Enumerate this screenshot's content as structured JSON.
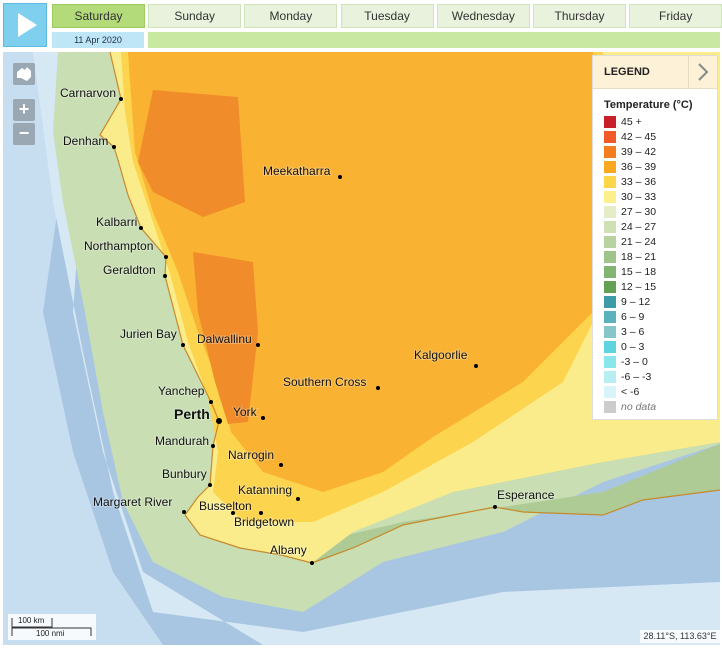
{
  "toolbar": {
    "days": [
      "Saturday",
      "Sunday",
      "Monday",
      "Tuesday",
      "Wednesday",
      "Thursday",
      "Friday"
    ],
    "date": "11 Apr 2020"
  },
  "map": {
    "zoom_in": "+",
    "zoom_out": "−",
    "places": [
      "Carnarvon",
      "Denham",
      "Meekatharra",
      "Kalbarri",
      "Northampton",
      "Geraldton",
      "Jurien Bay",
      "Dalwallinu",
      "Kalgoorlie",
      "Southern Cross",
      "Yanchep",
      "Perth",
      "York",
      "Mandurah",
      "Narrogin",
      "Bunbury",
      "Katanning",
      "Margaret River",
      "Busselton",
      "Bridgetown",
      "Esperance",
      "Albany"
    ],
    "scale_km": "100 km",
    "scale_nmi": "100 nmi",
    "coordinates": "28.11°S, 113.63°E"
  },
  "legend": {
    "title": "LEGEND",
    "subtitle": "Temperature (°C)",
    "items": [
      {
        "label": "45 +",
        "color": "#c8202a"
      },
      {
        "label": "42 – 45",
        "color": "#f05a28"
      },
      {
        "label": "39 – 42",
        "color": "#f47d20"
      },
      {
        "label": "36 – 39",
        "color": "#f9a81f"
      },
      {
        "label": "33 – 36",
        "color": "#fcd54b"
      },
      {
        "label": "30 – 33",
        "color": "#fcef8e"
      },
      {
        "label": "27 – 30",
        "color": "#e4ecc8"
      },
      {
        "label": "24 – 27",
        "color": "#cfe0b5"
      },
      {
        "label": "21 – 24",
        "color": "#b8d3a0"
      },
      {
        "label": "18 – 21",
        "color": "#9ec48a"
      },
      {
        "label": "15 – 18",
        "color": "#84b471"
      },
      {
        "label": "12 – 15",
        "color": "#64a153"
      },
      {
        "label": "9 – 12",
        "color": "#3f9aa8"
      },
      {
        "label": "6 – 9",
        "color": "#5ab3ba"
      },
      {
        "label": "3 – 6",
        "color": "#86c5c8"
      },
      {
        "label": "0 – 3",
        "color": "#5fd3e0"
      },
      {
        "label": "-3 – 0",
        "color": "#8ae6ea"
      },
      {
        "label": "-6 – -3",
        "color": "#b7eef2"
      },
      {
        "label": "< -6",
        "color": "#d8f4f8"
      },
      {
        "label": "no data",
        "color": "#cccccc"
      }
    ]
  }
}
